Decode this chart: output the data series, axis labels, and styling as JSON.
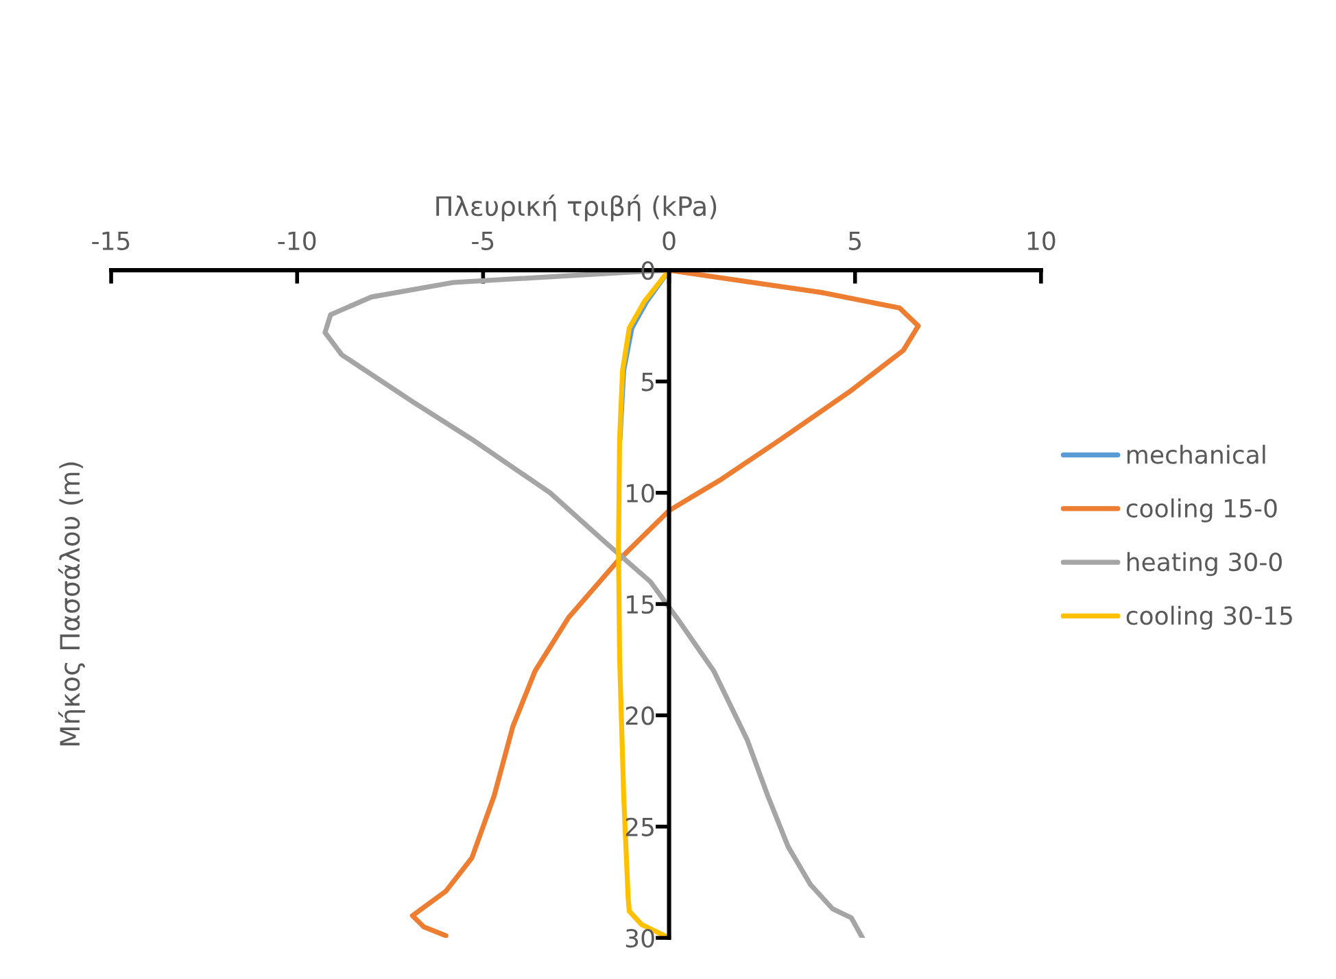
{
  "chart_data": {
    "type": "line",
    "xlabel": "Πλευρική τριβή (kPa)",
    "ylabel": "Μήκος Πασσάλου (m)",
    "xlim": [
      -15,
      10
    ],
    "xticks": [
      -15,
      -10,
      -5,
      0,
      5,
      10
    ],
    "ylim": [
      30,
      0
    ],
    "yticks": [
      0,
      5,
      10,
      15,
      20,
      25,
      30
    ],
    "grid": false,
    "legend": "right",
    "marker": "none",
    "line_style": "solid",
    "series": [
      {
        "name": "mechanical",
        "color": "#5b9bd5",
        "x": [
          0,
          -0.6,
          -1.0,
          -1.22,
          -1.32
        ],
        "values": [
          0,
          1.4,
          2.6,
          4.5,
          7.6
        ]
      },
      {
        "name": "cooling 15-0",
        "color": "#ed7d31",
        "x": [
          0,
          4.1,
          6.2,
          6.7,
          6.3,
          4.9,
          3.0,
          1.4,
          0,
          -1.4,
          -2.7,
          -3.6,
          -4.2,
          -4.7,
          -5.3,
          -6.0,
          -6.9,
          -6.6,
          -6.0
        ],
        "values": [
          0,
          1.0,
          1.7,
          2.5,
          3.6,
          5.4,
          7.6,
          9.4,
          10.8,
          13.1,
          15.6,
          18.0,
          20.5,
          23.6,
          26.4,
          27.9,
          29.0,
          29.5,
          29.9
        ]
      },
      {
        "name": "heating 30-0",
        "color": "#a5a5a5",
        "x": [
          0,
          -1.2,
          -5.8,
          -8.0,
          -9.1,
          -9.25,
          -8.8,
          -6.9,
          -5.3,
          -3.2,
          -1.8,
          -0.5,
          0.2,
          1.2,
          2.1,
          2.65,
          3.2,
          3.8,
          4.4,
          4.9,
          5.2
        ],
        "values": [
          0,
          0.1,
          0.55,
          1.2,
          2.0,
          2.8,
          3.8,
          5.9,
          7.6,
          10.0,
          12.1,
          14.0,
          15.6,
          18.0,
          21.1,
          23.6,
          25.9,
          27.6,
          28.7,
          29.1,
          30
        ]
      },
      {
        "name": "cooling 30-15",
        "color": "#ffc000",
        "x": [
          0,
          -0.66,
          -1.07,
          -1.25,
          -1.33,
          -1.36,
          -1.33,
          -1.22,
          -1.1,
          -1.07,
          -0.74,
          0
        ],
        "values": [
          0,
          1.4,
          2.6,
          4.5,
          7.6,
          12.5,
          17.4,
          23.6,
          28.2,
          28.8,
          29.4,
          30
        ]
      }
    ]
  }
}
